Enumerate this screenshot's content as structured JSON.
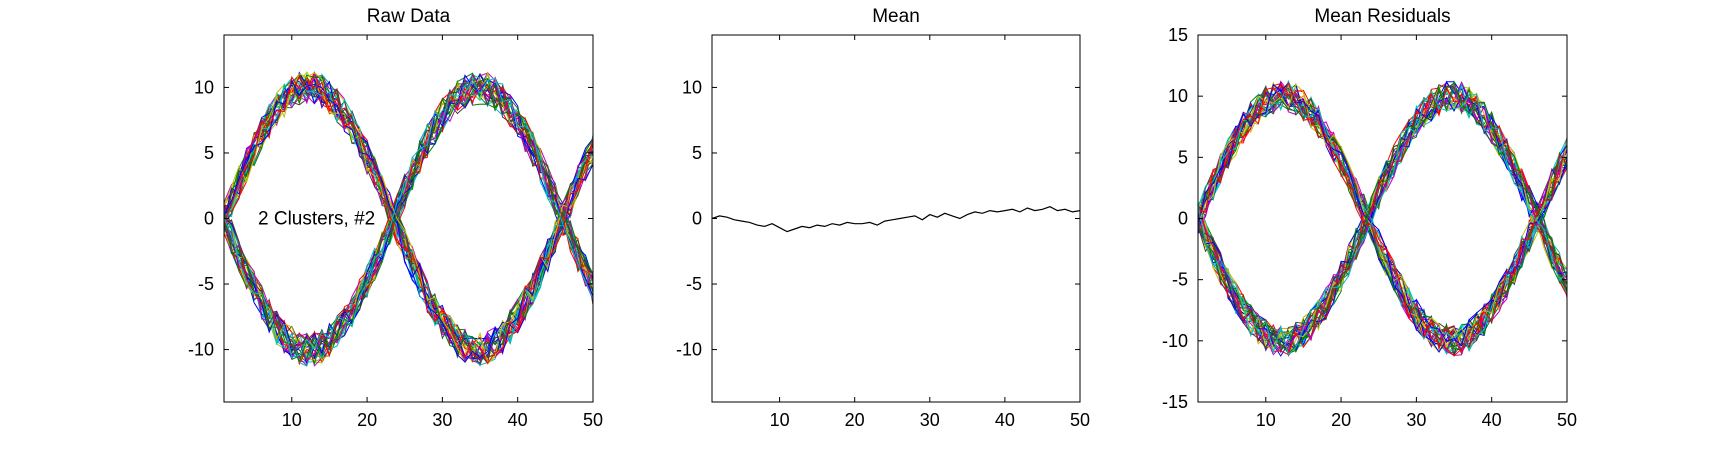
{
  "chart_data": [
    {
      "type": "line",
      "title": "Raw Data",
      "xlabel": "",
      "ylabel": "",
      "xlim": [
        1,
        50
      ],
      "ylim": [
        -14,
        14
      ],
      "xticks": [
        10,
        20,
        30,
        40,
        50
      ],
      "yticks": [
        -10,
        -5,
        0,
        5,
        10
      ],
      "x_tick_labels": [
        "10",
        "20",
        "30",
        "40",
        "50"
      ],
      "y_tick_labels": [
        "-10",
        "-5",
        "0",
        "5",
        "10"
      ],
      "grid": false,
      "annotation": "2 Clusters, #2",
      "series_description": {
        "count": 60,
        "cluster_a": "approx. 10*sin(2*pi*(x-1)/45) plus noise",
        "cluster_b": "approx. -10*sin(2*pi*(x-1)/45) plus noise",
        "noise_amplitude": 1.3
      }
    },
    {
      "type": "line",
      "title": "Mean",
      "xlabel": "",
      "ylabel": "",
      "xlim": [
        1,
        50
      ],
      "ylim": [
        -14,
        14
      ],
      "xticks": [
        10,
        20,
        30,
        40,
        50
      ],
      "yticks": [
        -10,
        -5,
        0,
        5,
        10
      ],
      "x_tick_labels": [
        "10",
        "20",
        "30",
        "40",
        "50"
      ],
      "y_tick_labels": [
        "-10",
        "-5",
        "0",
        "5",
        "10"
      ],
      "grid": false,
      "series": [
        {
          "color": "#000000",
          "x": [
            1,
            2,
            3,
            4,
            5,
            6,
            7,
            8,
            9,
            10,
            11,
            12,
            13,
            14,
            15,
            16,
            17,
            18,
            19,
            20,
            21,
            22,
            23,
            24,
            25,
            26,
            27,
            28,
            29,
            30,
            31,
            32,
            33,
            34,
            35,
            36,
            37,
            38,
            39,
            40,
            41,
            42,
            43,
            44,
            45,
            46,
            47,
            48,
            49,
            50
          ],
          "values": [
            0.0,
            0.2,
            0.1,
            -0.1,
            -0.2,
            -0.3,
            -0.5,
            -0.6,
            -0.4,
            -0.7,
            -1.0,
            -0.8,
            -0.6,
            -0.7,
            -0.5,
            -0.6,
            -0.4,
            -0.5,
            -0.3,
            -0.4,
            -0.4,
            -0.3,
            -0.5,
            -0.2,
            -0.1,
            0.0,
            0.1,
            0.2,
            -0.1,
            0.3,
            0.1,
            0.4,
            0.2,
            0.0,
            0.3,
            0.5,
            0.4,
            0.6,
            0.5,
            0.6,
            0.7,
            0.5,
            0.8,
            0.6,
            0.7,
            0.9,
            0.6,
            0.7,
            0.5,
            0.6
          ]
        }
      ]
    },
    {
      "type": "line",
      "title": "Mean Residuals",
      "xlabel": "",
      "ylabel": "",
      "xlim": [
        1,
        50
      ],
      "ylim": [
        -15,
        15
      ],
      "xticks": [
        10,
        20,
        30,
        40,
        50
      ],
      "yticks": [
        -15,
        -10,
        -5,
        0,
        5,
        10,
        15
      ],
      "x_tick_labels": [
        "10",
        "20",
        "30",
        "40",
        "50"
      ],
      "y_tick_labels": [
        "-15",
        "-10",
        "-5",
        "0",
        "5",
        "10",
        "15"
      ],
      "grid": false,
      "series_description": {
        "count": 60,
        "cluster_a": "approx. 10*sin(2*pi*(x-1)/45) plus noise",
        "cluster_b": "approx. -10*sin(2*pi*(x-1)/45) plus noise",
        "noise_amplitude": 1.3
      }
    }
  ],
  "colors": {
    "palette": [
      "#0000ff",
      "#008000",
      "#ff0000",
      "#00bfbf",
      "#bf00bf",
      "#bfbf00",
      "#404040"
    ]
  }
}
